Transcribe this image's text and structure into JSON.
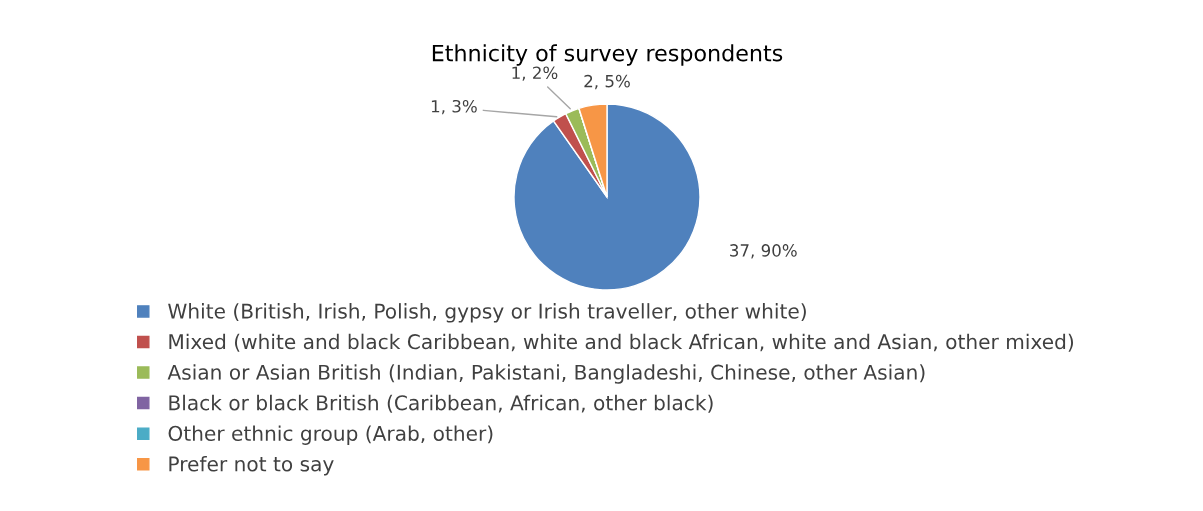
{
  "chart_data": {
    "type": "pie",
    "title": "Ethnicity of survey respondents",
    "categories": [
      "White (British, Irish, Polish, gypsy or Irish traveller, other white)",
      "Mixed (white and black Caribbean, white and black African, white and Asian, other mixed)",
      "Asian or Asian British (Indian, Pakistani, Bangladeshi, Chinese, other Asian)",
      "Black or black British (Caribbean, African, other black)",
      "Other ethnic group (Arab, other)",
      "Prefer not to say"
    ],
    "values": [
      37,
      1,
      1,
      0,
      0,
      2
    ],
    "colors": [
      "#4f81bd",
      "#c0504d",
      "#9bbb59",
      "#8064a2",
      "#4bacc6",
      "#f79646"
    ],
    "value_labels": [
      "37, 90%",
      "1, 3%",
      "1, 2%",
      null,
      null,
      "2, 5%"
    ],
    "legend": "bottom"
  }
}
